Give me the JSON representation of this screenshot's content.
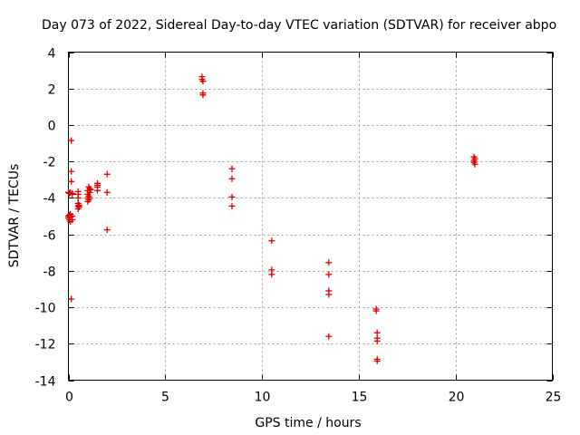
{
  "chart_data": {
    "type": "scatter",
    "title": "Day 073 of 2022, Sidereal Day-to-day VTEC variation (SDTVAR) for receiver abpo",
    "xlabel": "GPS time / hours",
    "ylabel": "SDTVAR / TECUs",
    "xlim": [
      0,
      25
    ],
    "ylim": [
      -14,
      4
    ],
    "xticks": [
      0,
      5,
      10,
      15,
      20,
      25
    ],
    "yticks": [
      -14,
      -12,
      -10,
      -8,
      -6,
      -4,
      -2,
      0,
      2,
      4
    ],
    "grid": true,
    "marker": "+",
    "color": "#e00000",
    "series": [
      {
        "name": "SDTVAR",
        "x": [
          0.0,
          0.0,
          0.0,
          0.05,
          0.05,
          0.05,
          0.1,
          0.1,
          0.1,
          0.1,
          0.15,
          0.15,
          0.15,
          0.15,
          0.2,
          0.2,
          0.2,
          0.2,
          0.5,
          0.5,
          0.5,
          0.5,
          0.5,
          0.5,
          0.55,
          0.55,
          1.0,
          1.0,
          1.0,
          1.0,
          1.05,
          1.05,
          1.05,
          1.1,
          1.1,
          1.1,
          1.15,
          1.5,
          1.5,
          1.5,
          1.5,
          2.0,
          2.0,
          2.0,
          6.9,
          6.9,
          6.95,
          6.95,
          6.95,
          8.45,
          8.45,
          8.45,
          8.45,
          10.5,
          10.5,
          10.5,
          13.45,
          13.45,
          13.45,
          13.45,
          13.45,
          15.9,
          15.9,
          15.95,
          15.95,
          15.95,
          15.95,
          15.95,
          20.95,
          20.95,
          20.95,
          21.0,
          21.0
        ],
        "y": [
          -5.0,
          -5.1,
          -3.7,
          -5.2,
          -4.95,
          -3.75,
          -5.3,
          -5.05,
          -4.9,
          -3.7,
          -0.85,
          -2.55,
          -3.1,
          -9.55,
          -5.0,
          -5.2,
          -3.75,
          -3.8,
          -3.8,
          -4.0,
          -4.3,
          -4.45,
          -4.6,
          -3.65,
          -4.5,
          -4.4,
          -3.6,
          -3.8,
          -4.0,
          -4.2,
          -3.4,
          -3.9,
          -4.1,
          -3.5,
          -3.7,
          -4.0,
          -3.55,
          -3.2,
          -3.4,
          -3.6,
          -3.3,
          -2.7,
          -3.7,
          -5.75,
          2.65,
          2.5,
          2.4,
          1.75,
          1.65,
          -2.4,
          -2.95,
          -3.95,
          -4.45,
          -6.35,
          -7.95,
          -8.2,
          -7.55,
          -8.2,
          -9.1,
          -9.3,
          -11.6,
          -10.2,
          -10.1,
          -11.4,
          -11.7,
          -11.85,
          -12.85,
          -12.95,
          -1.75,
          -1.95,
          -2.05,
          -2.15,
          -1.85
        ]
      }
    ]
  }
}
